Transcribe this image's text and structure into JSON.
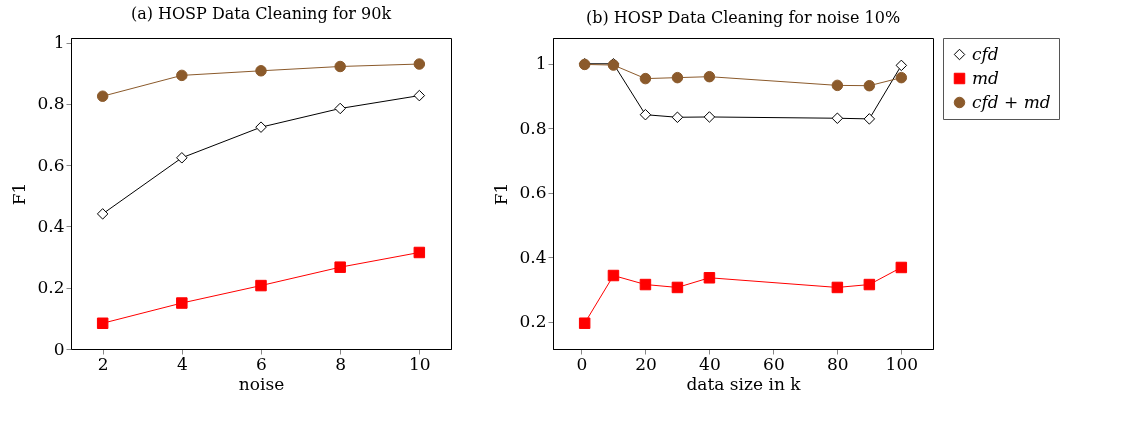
{
  "chart_data": [
    {
      "type": "line",
      "title": "(a) HOSP Data Cleaning for 90k",
      "xlabel": "noise",
      "ylabel": "F1",
      "x": [
        2,
        4,
        6,
        8,
        10
      ],
      "xlim": [
        1.2,
        10.8
      ],
      "xticks": [
        2,
        4,
        6,
        8,
        10
      ],
      "ylim": [
        0,
        1.015
      ],
      "yticks": [
        0,
        0.2,
        0.4,
        0.6,
        0.8,
        1
      ],
      "series": [
        {
          "color": "#000000",
          "marker": "diamond",
          "values": [
            0.441,
            0.624,
            0.724,
            0.785,
            0.827
          ]
        },
        {
          "color": "#ff0000",
          "marker": "square",
          "values": [
            0.084,
            0.15,
            0.207,
            0.267,
            0.315
          ]
        },
        {
          "color": "#8b5a2b",
          "marker": "circle",
          "values": [
            0.825,
            0.893,
            0.908,
            0.922,
            0.93
          ]
        }
      ]
    },
    {
      "type": "line",
      "title": "(b) HOSP Data Cleaning for noise 10%",
      "xlabel": "data size in k",
      "ylabel": "F1",
      "x": [
        1,
        10,
        20,
        30,
        40,
        80,
        90,
        100
      ],
      "xlim": [
        -8.9,
        109.9
      ],
      "xticks": [
        0,
        20,
        40,
        60,
        80,
        100
      ],
      "ylim": [
        0.115,
        1.08
      ],
      "yticks": [
        0.2,
        0.4,
        0.6,
        0.8,
        1
      ],
      "legend": "top right",
      "series": [
        {
          "name": "cfd",
          "color": "#000000",
          "marker": "diamond",
          "values": [
            1.0,
            1.0,
            0.842,
            0.834,
            0.835,
            0.831,
            0.829,
            0.995
          ]
        },
        {
          "name": "md",
          "color": "#ff0000",
          "marker": "square",
          "values": [
            0.195,
            0.343,
            0.315,
            0.306,
            0.336,
            0.306,
            0.315,
            0.368
          ]
        },
        {
          "name": "cfd + md",
          "color": "#8b5a2b",
          "marker": "circle",
          "values": [
            0.998,
            0.996,
            0.954,
            0.957,
            0.96,
            0.933,
            0.932,
            0.957
          ]
        }
      ]
    }
  ]
}
